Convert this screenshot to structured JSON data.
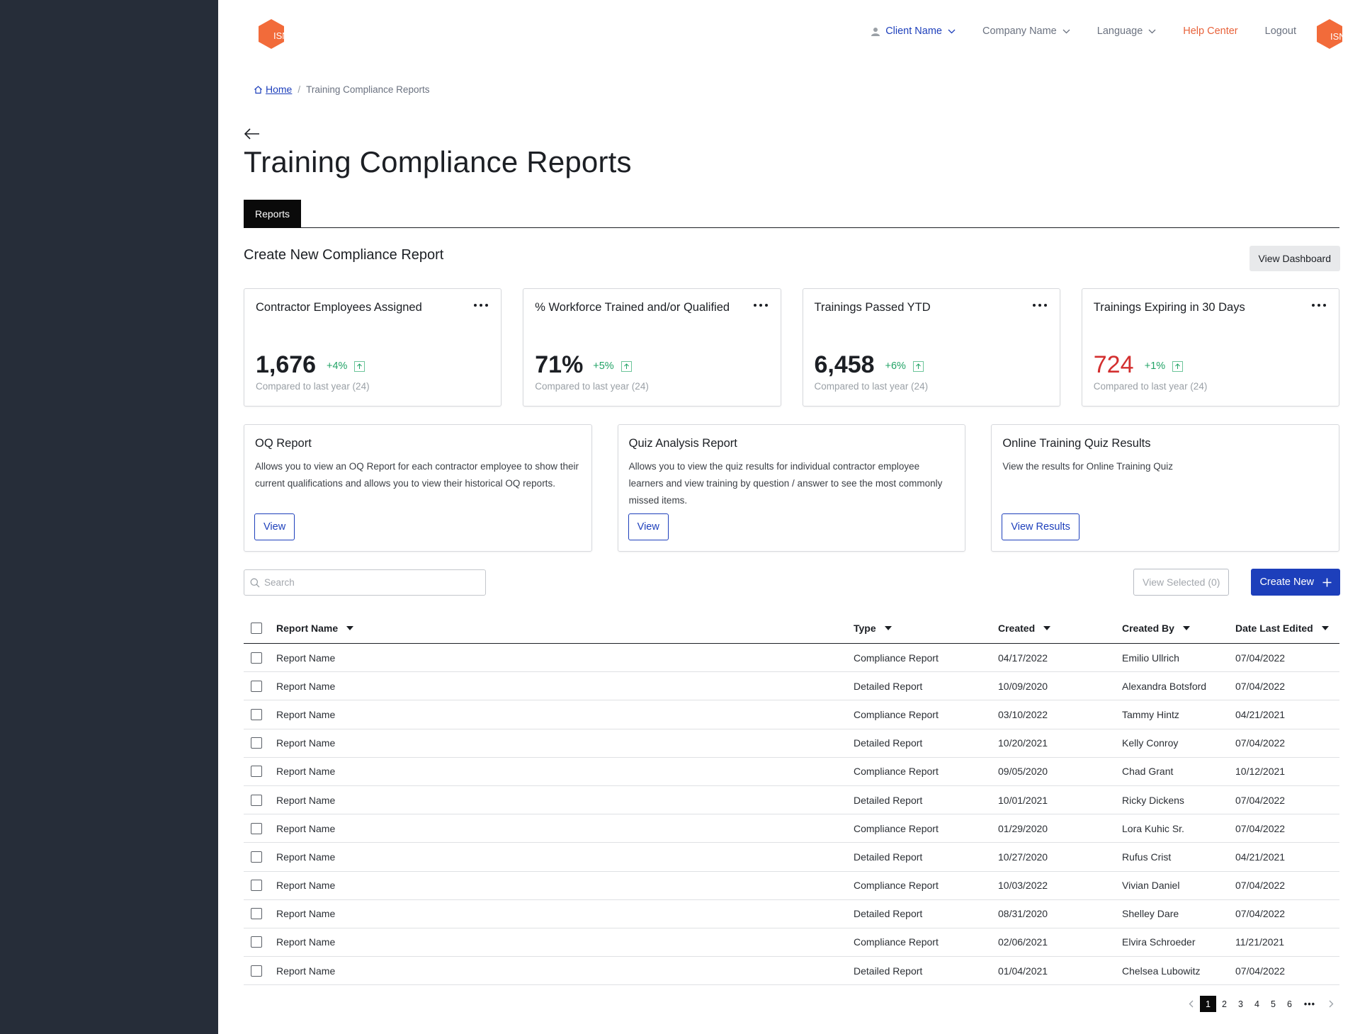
{
  "header": {
    "logo_text": "ISN",
    "client_name": "Client Name",
    "company_name": "Company Name",
    "language": "Language",
    "help_center": "Help Center",
    "logout": "Logout",
    "avatar_text": "ISN"
  },
  "breadcrumb": {
    "home": "Home",
    "separator": "/",
    "current": "Training Compliance Reports"
  },
  "page": {
    "title": "Training Compliance Reports",
    "tab": "Reports",
    "section_title": "Create New Compliance Report",
    "view_dashboard": "View Dashboard"
  },
  "stats": [
    {
      "title": "Contractor Employees Assigned",
      "value": "1,676",
      "change": "+4%",
      "sub": "Compared to last year (24)"
    },
    {
      "title": "% Workforce Trained and/or Qualified",
      "value": "71%",
      "change": "+5%",
      "sub": "Compared to last year (24)"
    },
    {
      "title": "Trainings Passed YTD",
      "value": "6,458",
      "change": "+6%",
      "sub": "Compared to last year (24)"
    },
    {
      "title": "Trainings Expiring in 30 Days",
      "value": "724",
      "change": "+1%",
      "sub": "Compared to last year (24)"
    }
  ],
  "report_cards": [
    {
      "title": "OQ Report",
      "desc": "Allows you to view an OQ Report for each contractor employee to show their current qualifications and allows you to view their historical OQ reports.",
      "button": "View"
    },
    {
      "title": "Quiz Analysis Report",
      "desc": "Allows you to view the quiz results for individual contractor employee learners and view training by question / answer to see the most commonly missed items.",
      "button": "View"
    },
    {
      "title": "Online Training Quiz Results",
      "desc": "View the results for Online Training Quiz",
      "button": "View Results"
    }
  ],
  "toolbar": {
    "search_placeholder": "Search",
    "view_selected": "View Selected (0)",
    "create_new": "Create New"
  },
  "table": {
    "headers": {
      "name": "Report Name",
      "type": "Type",
      "created": "Created",
      "created_by": "Created By",
      "edited": "Date Last Edited"
    },
    "rows": [
      {
        "name": "Report Name",
        "type": "Compliance Report",
        "created": "04/17/2022",
        "by": "Emilio Ullrich",
        "edited": "07/04/2022"
      },
      {
        "name": "Report Name",
        "type": "Detailed Report",
        "created": "10/09/2020",
        "by": "Alexandra Botsford",
        "edited": "07/04/2022"
      },
      {
        "name": "Report Name",
        "type": "Compliance Report",
        "created": "03/10/2022",
        "by": "Tammy Hintz",
        "edited": "04/21/2021"
      },
      {
        "name": "Report Name",
        "type": "Detailed Report",
        "created": "10/20/2021",
        "by": "Kelly Conroy",
        "edited": "07/04/2022"
      },
      {
        "name": "Report Name",
        "type": "Compliance Report",
        "created": "09/05/2020",
        "by": "Chad Grant",
        "edited": "10/12/2021"
      },
      {
        "name": "Report Name",
        "type": "Detailed Report",
        "created": "10/01/2021",
        "by": "Ricky Dickens",
        "edited": "07/04/2022"
      },
      {
        "name": "Report Name",
        "type": "Compliance Report",
        "created": "01/29/2020",
        "by": "Lora Kuhic Sr.",
        "edited": "07/04/2022"
      },
      {
        "name": "Report Name",
        "type": "Detailed Report",
        "created": "10/27/2020",
        "by": "Rufus Crist",
        "edited": "04/21/2021"
      },
      {
        "name": "Report Name",
        "type": "Compliance Report",
        "created": "10/03/2022",
        "by": "Vivian Daniel",
        "edited": "07/04/2022"
      },
      {
        "name": "Report Name",
        "type": "Detailed Report",
        "created": "08/31/2020",
        "by": "Shelley Dare",
        "edited": "07/04/2022"
      },
      {
        "name": "Report Name",
        "type": "Compliance Report",
        "created": "02/06/2021",
        "by": "Elvira Schroeder",
        "edited": "11/21/2021"
      },
      {
        "name": "Report Name",
        "type": "Detailed Report",
        "created": "01/04/2021",
        "by": "Chelsea Lubowitz",
        "edited": "07/04/2022"
      }
    ]
  },
  "pagination": {
    "pages": [
      "1",
      "2",
      "3",
      "4",
      "5",
      "6"
    ],
    "current": "1",
    "ellipsis": "•••"
  },
  "colors": {
    "sidebar": "#262d39",
    "primary": "#1d3fbb",
    "accent_orange": "#e8623a",
    "positive": "#21a366",
    "negative": "#d32f2f"
  },
  "icons": [
    "user-icon",
    "chevron-down-icon",
    "home-icon",
    "back-arrow-icon",
    "more-dots-icon",
    "trend-up-icon",
    "search-icon",
    "plus-icon",
    "chevron-left-icon",
    "chevron-right-icon"
  ]
}
